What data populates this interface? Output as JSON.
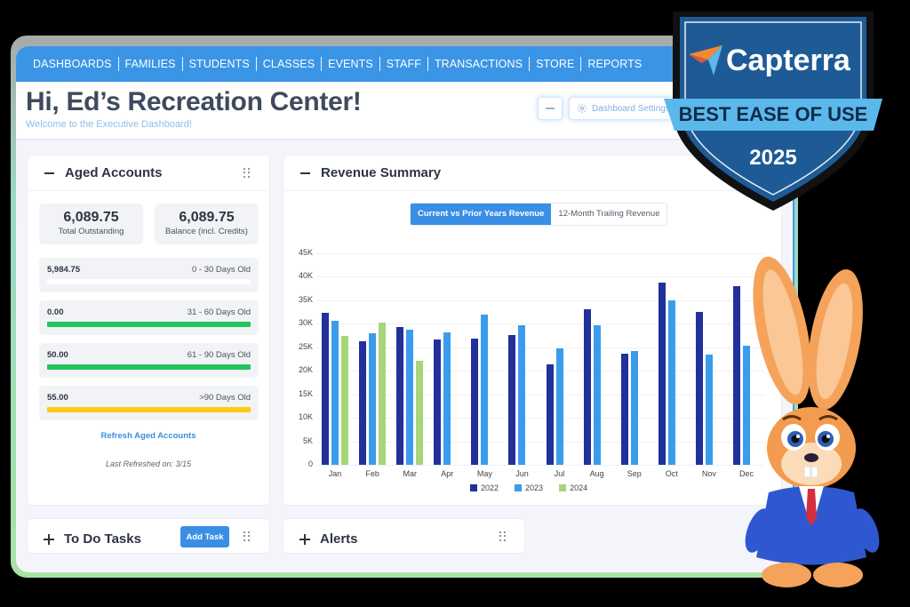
{
  "nav": {
    "items": [
      "DASHBOARDS",
      "FAMILIES",
      "STUDENTS",
      "CLASSES",
      "EVENTS",
      "STAFF",
      "TRANSACTIONS",
      "STORE",
      "REPORTS"
    ]
  },
  "header": {
    "title": "Hi, Ed’s Recreation Center!",
    "subtitle": "Welcome to the Executive Dashboard!",
    "settings_label": "Dashboard Settings",
    "minimize_icon": "minus-icon",
    "settings_icon": "gear-icon"
  },
  "aged_accounts": {
    "title": "Aged Accounts",
    "total_outstanding": {
      "value": "6,089.75",
      "label": "Total Outstanding"
    },
    "balance": {
      "value": "6,089.75",
      "label": "Balance (incl. Credits)"
    },
    "buckets": [
      {
        "amount": "5,984.75",
        "label": "0 - 30 Days Old",
        "bar_color": "#ffffff"
      },
      {
        "amount": "0.00",
        "label": "31 - 60 Days Old",
        "bar_color": "#22c55e"
      },
      {
        "amount": "50.00",
        "label": "61 - 90 Days Old",
        "bar_color": "#22c55e"
      },
      {
        "amount": "55.00",
        "label": ">90 Days Old",
        "bar_color": "#facc15"
      }
    ],
    "refresh_label": "Refresh Aged Accounts",
    "last_refreshed": "Last Refreshed on: 3/15"
  },
  "revenue_summary": {
    "title": "Revenue Summary",
    "tabs": [
      {
        "label": "Current vs Prior Years Revenue",
        "active": true
      },
      {
        "label": "12-Month Trailing Revenue",
        "active": false
      }
    ]
  },
  "todo": {
    "title": "To Do Tasks",
    "add_label": "Add Task"
  },
  "alerts": {
    "title": "Alerts"
  },
  "badge": {
    "brand": "Capterra",
    "award": "BEST EASE OF USE",
    "year": "2025",
    "colors": {
      "shield": "#1e5b96",
      "ribbon": "#5bb8ea",
      "text_dark": "#102a4c"
    }
  },
  "colors": {
    "nav": "#3b95e6",
    "accent": "#3b8ee6",
    "series_2022": "#21309a",
    "series_2023": "#3a9cec",
    "series_2024": "#a6d67a"
  },
  "chart_data": {
    "type": "bar",
    "title": "Revenue Summary",
    "subtitle": "Current vs Prior Years Revenue",
    "xlabel": "",
    "ylabel": "",
    "categories": [
      "Jan",
      "Feb",
      "Mar",
      "Apr",
      "May",
      "Jun",
      "Jul",
      "Aug",
      "Sep",
      "Oct",
      "Nov",
      "Dec"
    ],
    "series": [
      {
        "name": "2022",
        "color": "#21309a",
        "values": [
          32400,
          26300,
          29400,
          26700,
          26900,
          27700,
          21300,
          33100,
          23700,
          38800,
          32600,
          38100
        ]
      },
      {
        "name": "2023",
        "color": "#3a9cec",
        "values": [
          30600,
          27900,
          28800,
          28200,
          32000,
          29700,
          24800,
          29700,
          24200,
          35000,
          23500,
          25300
        ]
      },
      {
        "name": "2024",
        "color": "#a6d67a",
        "values": [
          27500,
          30300,
          22200,
          null,
          null,
          null,
          null,
          null,
          null,
          null,
          null,
          null
        ]
      }
    ],
    "y_ticks": [
      "0",
      "5K",
      "10K",
      "15K",
      "20K",
      "25K",
      "30K",
      "35K",
      "40K",
      "45K"
    ],
    "ylim": [
      0,
      45000
    ],
    "grid": true,
    "legend_position": "bottom"
  }
}
